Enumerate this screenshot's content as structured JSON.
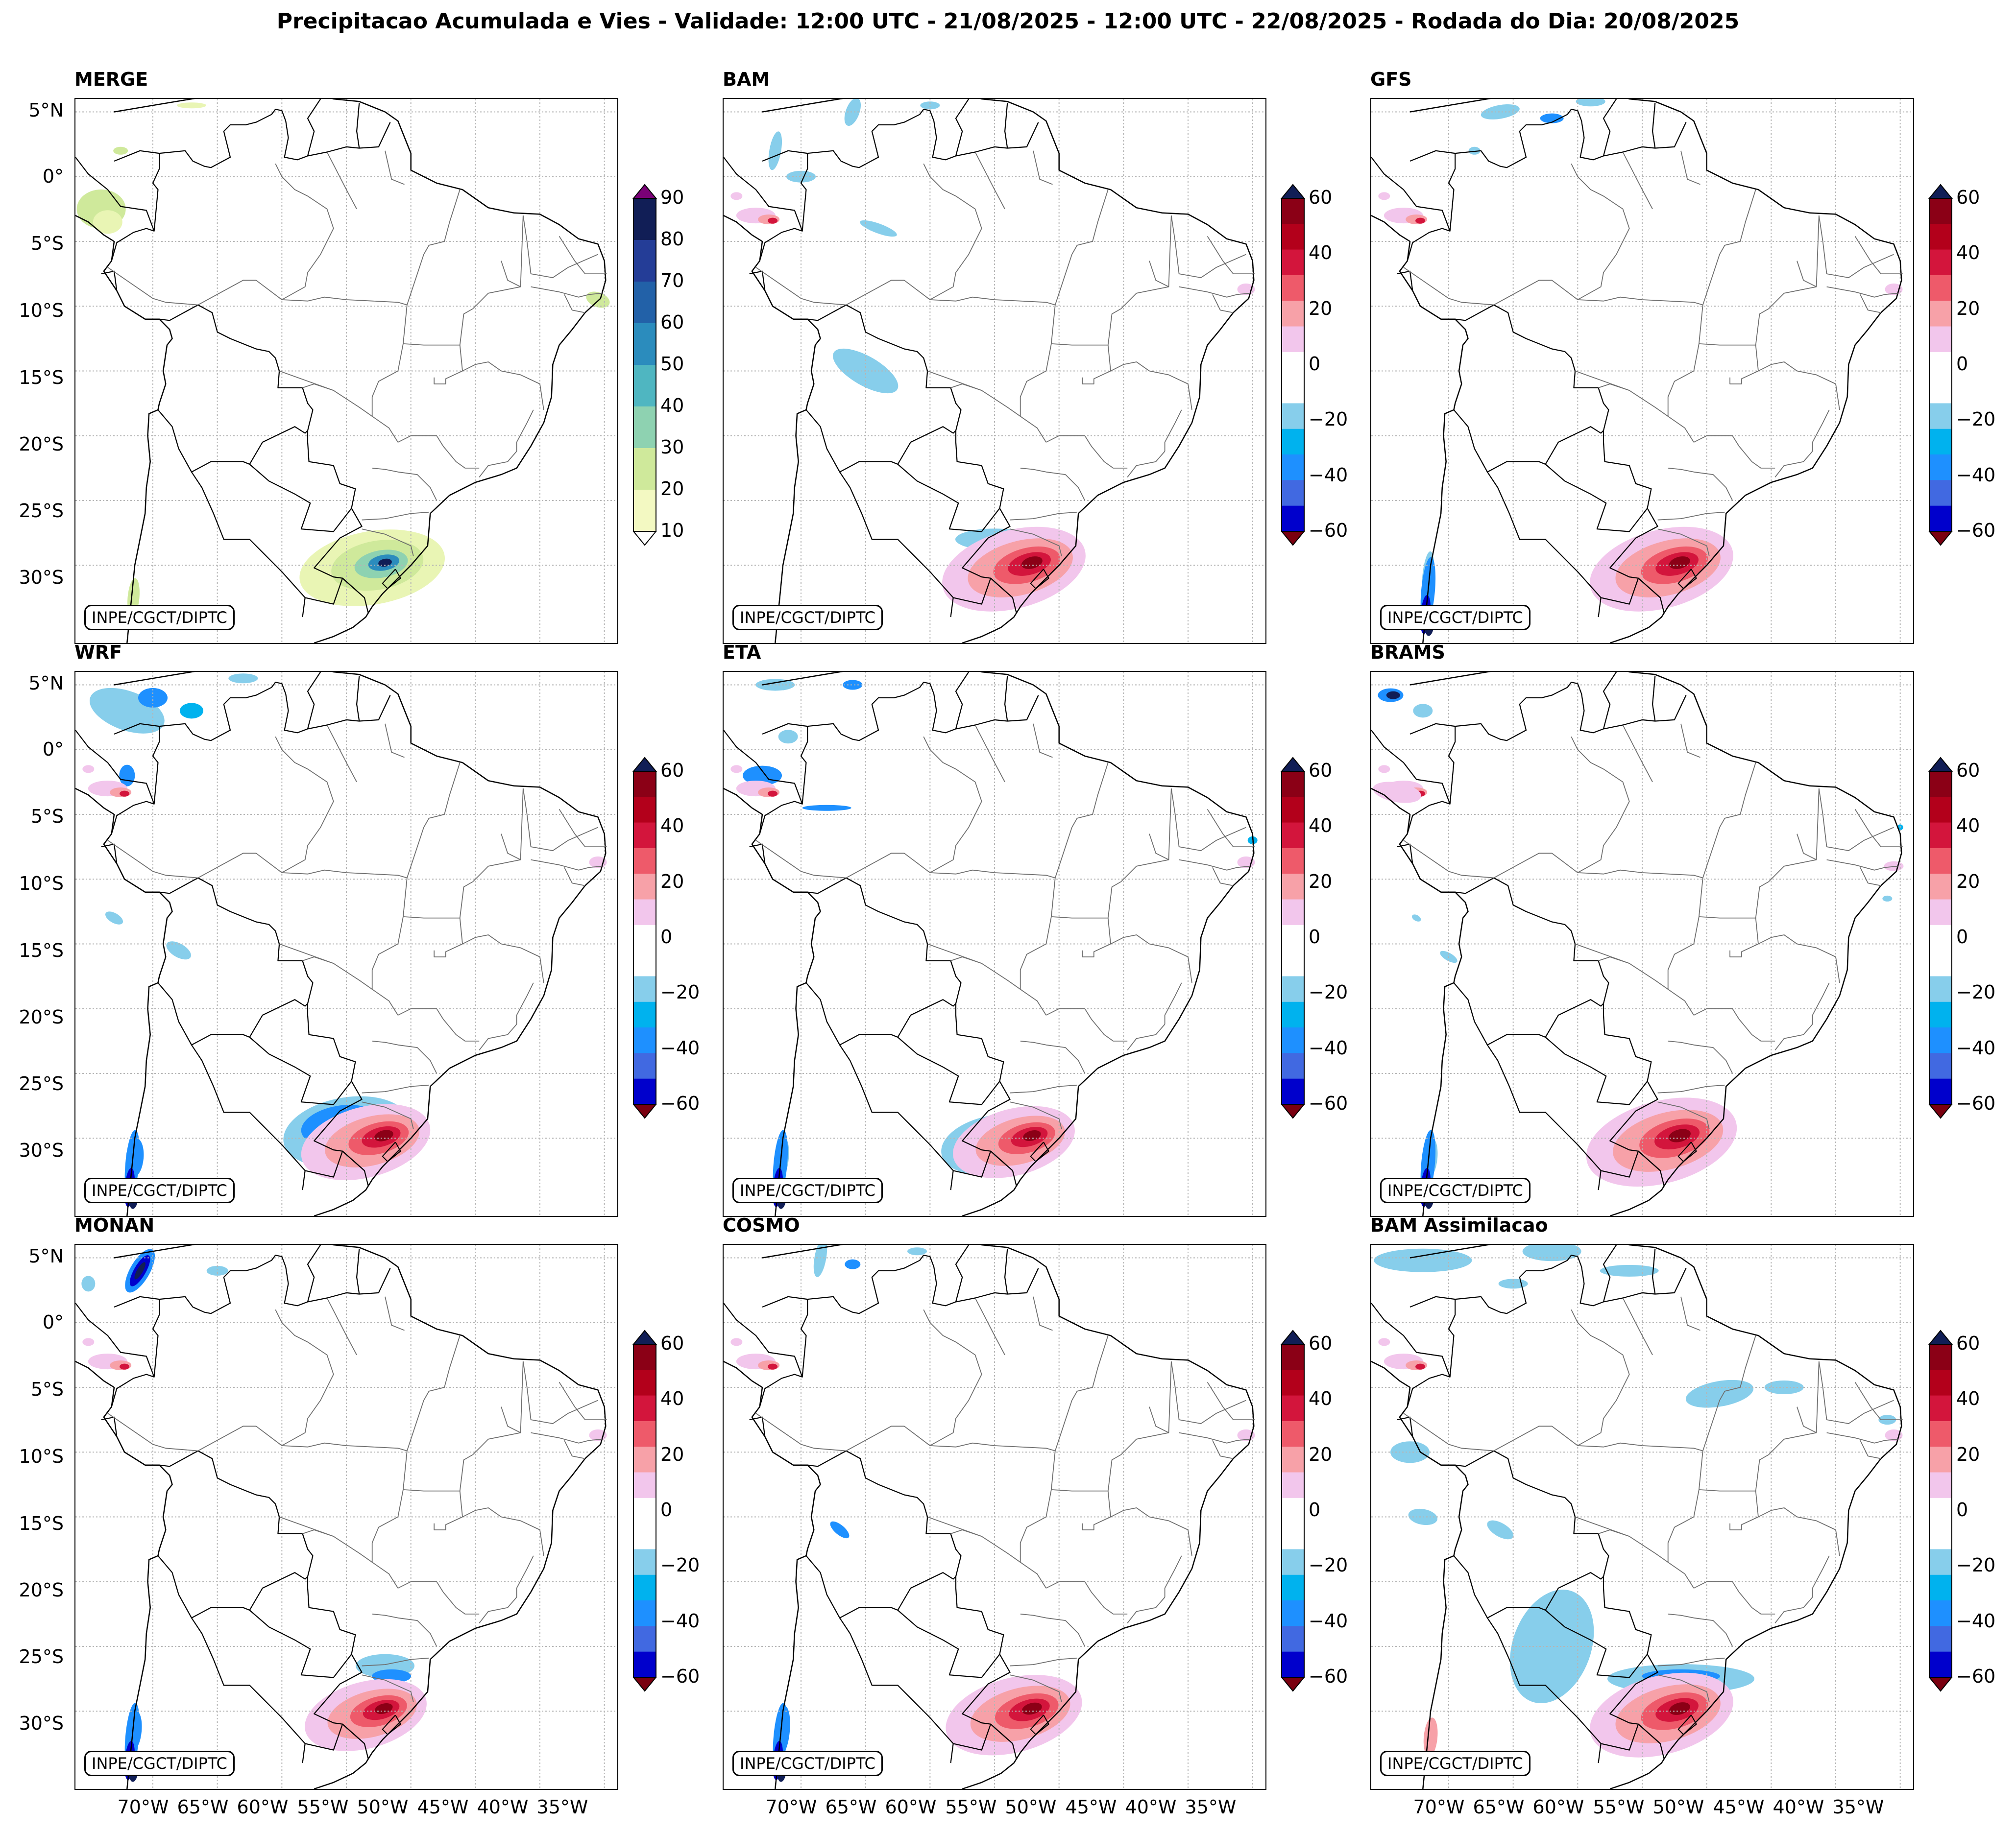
{
  "title": "Precipitacao Acumulada e Vies - Validade: 12:00 UTC - 21/08/2025 - 12:00 UTC - 22/08/2025 - Rodada do Dia: 20/08/2025",
  "credit": "INPE/CGCT/DIPTC",
  "lat_labels": [
    "5°N",
    "0°",
    "5°S",
    "10°S",
    "15°S",
    "20°S",
    "25°S",
    "30°S"
  ],
  "lon_labels": [
    "70°W",
    "65°W",
    "60°W",
    "55°W",
    "50°W",
    "45°W",
    "40°W",
    "35°W"
  ],
  "merge_colorbar": {
    "ticks": [
      "10",
      "20",
      "30",
      "40",
      "50",
      "60",
      "70",
      "80",
      "90"
    ],
    "colors": [
      "#f3f9c2",
      "#cfe99b",
      "#8ed2b1",
      "#4fb6c1",
      "#2b8cbd",
      "#2261a8",
      "#243d97",
      "#111e56"
    ],
    "extend_top_color": "#7a0177"
  },
  "bias_colorbar": {
    "ticks": [
      "60",
      "40",
      "20",
      "0",
      "−20",
      "−40",
      "−60"
    ],
    "colors": [
      "#0000cc",
      "#4169e1",
      "#1e90ff",
      "#00b2ee",
      "#87ceeb",
      "#ffffff",
      "#ffffff",
      "#f2c6ec",
      "#f7a1a8",
      "#ee5a6a",
      "#d3153c",
      "#b3001b",
      "#8b0016"
    ],
    "extend_top_color": "#111e56",
    "extend_bottom_color": "#7a0010"
  },
  "panels": [
    {
      "id": "merge",
      "title": "MERGE",
      "type": "precip"
    },
    {
      "id": "bam",
      "title": "BAM",
      "type": "bias"
    },
    {
      "id": "gfs",
      "title": "GFS",
      "type": "bias"
    },
    {
      "id": "wrf",
      "title": "WRF",
      "type": "bias"
    },
    {
      "id": "eta",
      "title": "ETA",
      "type": "bias"
    },
    {
      "id": "brams",
      "title": "BRAMS",
      "type": "bias"
    },
    {
      "id": "monan",
      "title": "MONAN",
      "type": "bias"
    },
    {
      "id": "cosmo",
      "title": "COSMO",
      "type": "bias"
    },
    {
      "id": "bam_assim",
      "title": "BAM Assimilacao",
      "type": "bias"
    }
  ]
}
